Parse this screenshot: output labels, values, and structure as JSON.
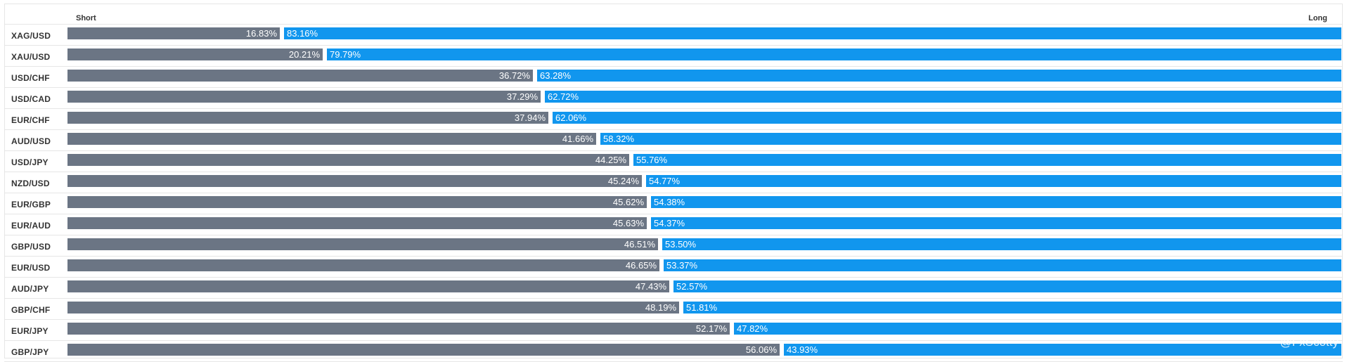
{
  "header": {
    "short_label": "Short",
    "long_label": "Long"
  },
  "watermark": "@FxScotty",
  "colors": {
    "short": "#6b7584",
    "long": "#1196ee"
  },
  "chart_data": {
    "type": "bar",
    "title": "",
    "xlabel": "",
    "ylabel": "",
    "stacked": true,
    "orientation": "horizontal",
    "categories": [
      "XAG/USD",
      "XAU/USD",
      "USD/CHF",
      "USD/CAD",
      "EUR/CHF",
      "AUD/USD",
      "USD/JPY",
      "NZD/USD",
      "EUR/GBP",
      "EUR/AUD",
      "GBP/USD",
      "EUR/USD",
      "AUD/JPY",
      "GBP/CHF",
      "EUR/JPY",
      "GBP/JPY"
    ],
    "series": [
      {
        "name": "Short",
        "values": [
          16.83,
          20.21,
          36.72,
          37.29,
          37.94,
          41.66,
          44.25,
          45.24,
          45.62,
          45.63,
          46.51,
          46.65,
          47.43,
          48.19,
          52.17,
          56.06
        ],
        "labels": [
          "16.83%",
          "20.21%",
          "36.72%",
          "37.29%",
          "37.94%",
          "41.66%",
          "44.25%",
          "45.24%",
          "45.62%",
          "45.63%",
          "46.51%",
          "46.65%",
          "47.43%",
          "48.19%",
          "52.17%",
          "56.06%"
        ]
      },
      {
        "name": "Long",
        "values": [
          83.16,
          79.79,
          63.28,
          62.72,
          62.06,
          58.32,
          55.76,
          54.77,
          54.38,
          54.37,
          53.5,
          53.37,
          52.57,
          51.81,
          47.82,
          43.93
        ],
        "labels": [
          "83.16%",
          "79.79%",
          "63.28%",
          "62.72%",
          "62.06%",
          "58.32%",
          "55.76%",
          "54.77%",
          "54.38%",
          "54.37%",
          "53.50%",
          "53.37%",
          "52.57%",
          "51.81%",
          "47.82%",
          "43.93%"
        ]
      }
    ],
    "xlim": [
      0,
      100
    ]
  }
}
